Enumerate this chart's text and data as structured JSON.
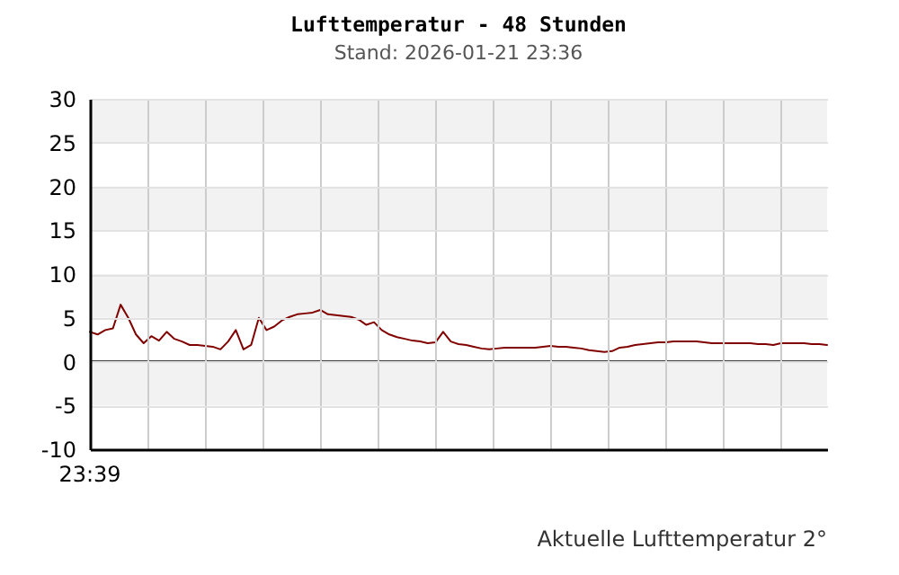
{
  "chart_data": {
    "type": "line",
    "title": "Lufttemperatur - 48 Stunden",
    "subtitle": "Stand: 2026-01-21 23:36",
    "categories": [
      null,
      null,
      null,
      null,
      null,
      null,
      null,
      null,
      null,
      null,
      null,
      null,
      null,
      null,
      null,
      null,
      null,
      null,
      null,
      null,
      null,
      null,
      null,
      null,
      null,
      null,
      null,
      null,
      null,
      null,
      null,
      null,
      null,
      null,
      null,
      null,
      null,
      null,
      null,
      null,
      null,
      null,
      null,
      null,
      null,
      null,
      null,
      null,
      null,
      null,
      null,
      null,
      null,
      null,
      null,
      null,
      null,
      null,
      null,
      null,
      null,
      null,
      null,
      null,
      null,
      null,
      null,
      null,
      null,
      null,
      null,
      null,
      null,
      null,
      null,
      null,
      null,
      null,
      null,
      null,
      null,
      null,
      null,
      null,
      null,
      null,
      null,
      null,
      null,
      null,
      null,
      null,
      null,
      null,
      null,
      null,
      null
    ],
    "series": [
      {
        "color": "#800000",
        "values": [
          3.4,
          3.1,
          3.6,
          3.8,
          6.5,
          5.0,
          3.1,
          2.1,
          2.9,
          2.4,
          3.4,
          2.6,
          2.3,
          1.9,
          1.9,
          1.8,
          1.7,
          1.4,
          2.3,
          3.6,
          1.4,
          1.9,
          5.0,
          3.6,
          4.0,
          4.7,
          5.1,
          5.4,
          5.5,
          5.6,
          5.9,
          5.4,
          5.3,
          5.2,
          5.1,
          4.8,
          4.2,
          4.5,
          3.6,
          3.1,
          2.8,
          2.6,
          2.4,
          2.3,
          2.1,
          2.2,
          3.4,
          2.3,
          2.0,
          1.9,
          1.7,
          1.5,
          1.4,
          1.5,
          1.6,
          1.6,
          1.6,
          1.6,
          1.6,
          1.7,
          1.8,
          1.7,
          1.7,
          1.6,
          1.5,
          1.3,
          1.2,
          1.1,
          1.2,
          1.6,
          1.7,
          1.9,
          2.0,
          2.1,
          2.2,
          2.2,
          2.3,
          2.3,
          2.3,
          2.3,
          2.2,
          2.1,
          2.1,
          2.1,
          2.1,
          2.1,
          2.1,
          2.0,
          2.0,
          1.9,
          2.1,
          2.1,
          2.1,
          2.1,
          2.0,
          2.0,
          1.9
        ]
      }
    ],
    "ylim": [
      -10,
      30
    ],
    "yticks": [
      -10,
      -5,
      0,
      5,
      10,
      15,
      20,
      25,
      30
    ],
    "grid": true,
    "marker": "none",
    "line_style": "solid",
    "ref_lines": [
      {
        "axis": "y",
        "value": 0,
        "color": "#000000"
      }
    ],
    "bands": [
      {
        "axis": "y",
        "from": 25,
        "to": 30,
        "color": "#f2f2f2"
      },
      {
        "axis": "y",
        "from": 15,
        "to": 20,
        "color": "#f2f2f2"
      },
      {
        "axis": "y",
        "from": 5,
        "to": 10,
        "color": "#f2f2f2"
      },
      {
        "axis": "y",
        "from": -5,
        "to": 0,
        "color": "#f2f2f2"
      }
    ],
    "annotations": [
      "23:39",
      "Aktuelle Lufttemperatur 2°"
    ]
  }
}
